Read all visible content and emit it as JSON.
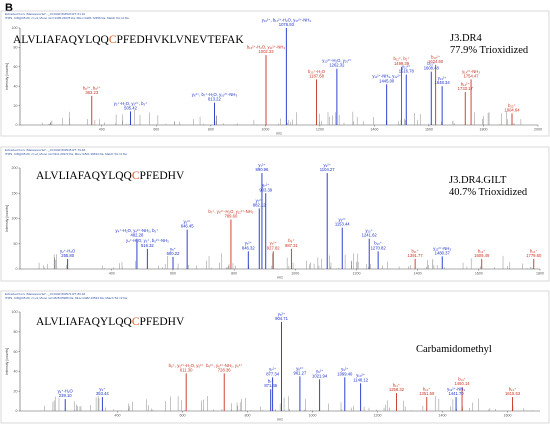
{
  "figure_label": "B",
  "colors": {
    "blue": "#1a2fc8",
    "red": "#c8321e",
    "grey": "#8a8a8a",
    "axis": "#555555",
    "header": "#3050a0"
  },
  "chart_data": [
    {
      "type": "bar",
      "title": "",
      "header": [
        "Extracted from: /Massspec/12/..._J3.RAW #04520 RT: 61.10",
        "ITMS, CID@35.00, z=+3, Mono m/z=1395.24678 Da, MH+=4181.72356 Da, Match Tol.=2 Da"
      ],
      "sequence": "ALVLIAFAQYLQQCPFEDHVKLVNEVTEFAK",
      "highlight_index": 13,
      "annotation": [
        "J3.DR4",
        "77.9% Trioxidized"
      ],
      "xlabel": "m/z",
      "ylabel": "Intensity [counts]",
      "xlim": [
        100,
        2000
      ],
      "x_ticks": [
        400,
        600,
        800,
        1000,
        1200,
        1400,
        1600,
        1800,
        2000
      ],
      "y_ticks": [
        "0",
        "20",
        "40",
        "60",
        "80",
        "100"
      ],
      "ylim": [
        0,
        100
      ],
      "peak_labels": [
        {
          "x": 363.23,
          "y": 30,
          "text": [
            "b₆³⁺, b₆²⁺",
            "363.23"
          ],
          "color": "red"
        },
        {
          "x": 505.42,
          "y": 14,
          "text": [
            "y₃⁺-H₂O, y₃²⁺, b₃⁺",
            "505.42"
          ],
          "color": "blue"
        },
        {
          "x": 813.22,
          "y": 23,
          "text": [
            "y₆²⁺, b₇⁺-H₂O, y₁₀²⁺-NH₃",
            "813.22"
          ],
          "color": "blue"
        },
        {
          "x": 1002.33,
          "y": 72,
          "text": [
            "b₁₆²⁺-H₂O, y₁₁²⁺-NH₃",
            "1002.33"
          ],
          "color": "red"
        },
        {
          "x": 1076.93,
          "y": 100,
          "text": [
            "y₁₆²⁺, b₁₇²⁺-H₂O, y₁₇²⁺-NH₃",
            "1076.93"
          ],
          "color": "blue"
        },
        {
          "x": 1187.68,
          "y": 47,
          "text": [
            "b₁₀⁺-H₂O",
            "1187.68"
          ],
          "color": "red"
        },
        {
          "x": 1262.32,
          "y": 58,
          "text": [
            "y₁₀²⁺-H₂O, y₁₀²⁺",
            "1262.32"
          ],
          "color": "blue"
        },
        {
          "x": 1445.0,
          "y": 42,
          "text": [
            "y₁₁²⁺-NH₃, y₁₂²⁺",
            "1445.00"
          ],
          "color": "blue"
        },
        {
          "x": 1499.39,
          "y": 60,
          "text": [
            "b₁₂⁺, b₂⁺",
            "1499.39"
          ],
          "color": "red"
        },
        {
          "x": 1516.78,
          "y": 52,
          "text": [
            "y₁₂²⁺",
            "1516.78"
          ],
          "color": "blue"
        },
        {
          "x": 1608.48,
          "y": 55,
          "text": [
            "b₁₃⁺",
            "1608.48"
          ],
          "color": "blue"
        },
        {
          "x": 1624.6,
          "y": 62,
          "text": [
            "b₁₃²⁺",
            "1624.60"
          ],
          "color": "red"
        },
        {
          "x": 1648.34,
          "y": 40,
          "text": [
            "y₁₃²⁺",
            "1648.34"
          ],
          "color": "blue"
        },
        {
          "x": 1733.17,
          "y": 34,
          "text": [
            "b₁₄²⁺",
            "1733.17"
          ],
          "color": "red"
        },
        {
          "x": 1754.47,
          "y": 47,
          "text": [
            "y₁₄²⁺-NH₃",
            "1754.47"
          ],
          "color": "red"
        },
        {
          "x": 1904.64,
          "y": 12,
          "text": [
            "b₁₅⁺",
            "1904.64"
          ],
          "color": "red"
        }
      ]
    },
    {
      "type": "bar",
      "title": "",
      "header": [
        "Extracted from: /Massspec/12/..._J3.RAW #03545 RT: 79.48",
        "ITMS, CID@35.00, z=+2, Mono m/z=911.20370 Da, MH+=1821.39534 Da, Match Tol.=2 Da"
      ],
      "sequence": "ALVLIAFAQYLQQCPFEDHV",
      "highlight_index": 13,
      "annotation": [
        "J3.DR4.GILT",
        "40.7% Trioxidized"
      ],
      "xlabel": "m/z",
      "ylabel": "Intensity [counts]",
      "xlim": [
        100,
        1800
      ],
      "x_ticks": [
        400,
        600,
        800,
        1000,
        1200,
        1400,
        1600,
        1800
      ],
      "y_ticks": [
        "0",
        "50",
        "100",
        "150",
        "200"
      ],
      "ylim": [
        0,
        200
      ],
      "peak_labels": [
        {
          "x": 255.8,
          "y": 20,
          "text": [
            "y₂⁺-H₂O",
            "255.80"
          ],
          "color": "blue"
        },
        {
          "x": 482.28,
          "y": 60,
          "text": [
            "y₄⁺-H₂O, y₄²⁺-NH₃, b₅⁺",
            "482.28"
          ],
          "color": "blue"
        },
        {
          "x": 516.32,
          "y": 40,
          "text": [
            "y₄⁺-H₂O, y₅⁺, b₅²⁺-NH₃",
            "516.32"
          ],
          "color": "blue"
        },
        {
          "x": 600.22,
          "y": 24,
          "text": [
            "y₅⁺",
            "600.22"
          ],
          "color": "blue"
        },
        {
          "x": 646.45,
          "y": 78,
          "text": [
            "y₅²⁺",
            "646.45"
          ],
          "color": "blue"
        },
        {
          "x": 789.6,
          "y": 98,
          "text": [
            "b₇⁺, y₆²⁺-H₂O, y₁₁²⁺-NH₃",
            "789.60"
          ],
          "color": "red"
        },
        {
          "x": 882.12,
          "y": 120,
          "text": [
            "y₇²⁺",
            "882.12"
          ],
          "color": "blue"
        },
        {
          "x": 846.32,
          "y": 35,
          "text": [
            "y₇²⁺",
            "846.32"
          ],
          "color": "blue"
        },
        {
          "x": 890.96,
          "y": 190,
          "text": [
            "y₇²⁺",
            "890.96"
          ],
          "color": "blue"
        },
        {
          "x": 903.39,
          "y": 150,
          "text": [
            "y₇²⁺",
            "903.39"
          ],
          "color": "blue"
        },
        {
          "x": 927.82,
          "y": 35,
          "text": [
            "y₇²⁺",
            "927.82"
          ],
          "color": "red"
        },
        {
          "x": 987.31,
          "y": 40,
          "text": [
            "b₈⁺",
            "987.31"
          ],
          "color": "red"
        },
        {
          "x": 1104.27,
          "y": 190,
          "text": [
            "y₉²⁺",
            "1104.27"
          ],
          "color": "blue"
        },
        {
          "x": 1153.44,
          "y": 82,
          "text": [
            "y₉²⁺",
            "1153.44"
          ],
          "color": "blue"
        },
        {
          "x": 1241.62,
          "y": 60,
          "text": [
            "y₁₀⁺",
            "1241.62"
          ],
          "color": "blue"
        },
        {
          "x": 1270.82,
          "y": 35,
          "text": [
            "b₁₀⁺",
            "1270.82"
          ],
          "color": "blue"
        },
        {
          "x": 1391.77,
          "y": 20,
          "text": [
            "b₁₁⁺",
            "1391.77"
          ],
          "color": "red"
        },
        {
          "x": 1480.37,
          "y": 25,
          "text": [
            "y₁₂²⁺-NH₃",
            "1480.37"
          ],
          "color": "blue"
        },
        {
          "x": 1609.49,
          "y": 20,
          "text": [
            "b₁₃⁺",
            "1609.49"
          ],
          "color": "red"
        },
        {
          "x": 1779.6,
          "y": 20,
          "text": [
            "b₁₄⁺",
            "1779.60"
          ],
          "color": "red"
        }
      ]
    },
    {
      "type": "bar",
      "title": "",
      "header": [
        "Extracted from: /Massspec/12/..._J3.RAW #03574 RT: 80.18",
        "ITMS, CID@35.00, z=+3, Mono m/z=828.05986 Da, MH+=2482.16534 Da, Match Tol.=2 Da"
      ],
      "sequence": "ALVLIAFAQYLQQCPFEDHV",
      "highlight_index": 13,
      "annotation": [
        "Carbamidomethyl"
      ],
      "xlabel": "m/z",
      "ylabel": "Intensity [counts]",
      "xlim": [
        100,
        1700
      ],
      "x_ticks": [
        400,
        600,
        800,
        1000,
        1200,
        1400,
        1600
      ],
      "y_ticks": [
        "0",
        "20",
        "40",
        "60",
        "80",
        "100"
      ],
      "ylim": [
        0,
        100
      ],
      "peak_labels": [
        {
          "x": 239.1,
          "y": 12,
          "text": [
            "y₂⁺-H₂O",
            "239.10"
          ],
          "color": "blue"
        },
        {
          "x": 353.44,
          "y": 14,
          "text": [
            "y₃⁺",
            "353.44"
          ],
          "color": "blue"
        },
        {
          "x": 611.3,
          "y": 38,
          "text": [
            "b₈⁺, y₅²⁺-H₂O, y₅²⁺",
            "611.30"
          ],
          "color": "red"
        },
        {
          "x": 728.36,
          "y": 38,
          "text": [
            "b₆²⁺, y₆²⁺-NH₃, y₆²⁺",
            "728.36"
          ],
          "color": "red"
        },
        {
          "x": 871.46,
          "y": 22,
          "text": [
            "b₇⁺",
            "871.46"
          ],
          "color": "blue"
        },
        {
          "x": 877.34,
          "y": 34,
          "text": [
            "y₇²⁺",
            "877.34"
          ],
          "color": "blue"
        },
        {
          "x": 904.71,
          "y": 90,
          "text": [
            "y₈²⁺",
            "904.71"
          ],
          "color": "blue"
        },
        {
          "x": 961.27,
          "y": 35,
          "text": [
            "y₈²⁺",
            "961.27"
          ],
          "color": "blue"
        },
        {
          "x": 1021.94,
          "y": 32,
          "text": [
            "y₉²⁺",
            "1021.94"
          ],
          "color": "blue"
        },
        {
          "x": 1099.4,
          "y": 34,
          "text": [
            "y₉²⁺",
            "1099.40"
          ],
          "color": "blue"
        },
        {
          "x": 1148.12,
          "y": 28,
          "text": [
            "y₁₀²⁺",
            "1148.12"
          ],
          "color": "blue"
        },
        {
          "x": 1258.32,
          "y": 18,
          "text": [
            "b₁₁⁺",
            "1258.32"
          ],
          "color": "red"
        },
        {
          "x": 1351.59,
          "y": 14,
          "text": [
            "b₁₂⁺",
            "1351.59"
          ],
          "color": "red"
        },
        {
          "x": 1460.14,
          "y": 24,
          "text": [
            "b₁₃⁺",
            "1460.14"
          ],
          "color": "red"
        },
        {
          "x": 1441.7,
          "y": 14,
          "text": [
            "y₁₂²⁺-NH₃",
            "1441.70"
          ],
          "color": "blue"
        },
        {
          "x": 1615.53,
          "y": 14,
          "text": [
            "b₁₄⁺",
            "1615.53"
          ],
          "color": "red"
        }
      ]
    }
  ]
}
